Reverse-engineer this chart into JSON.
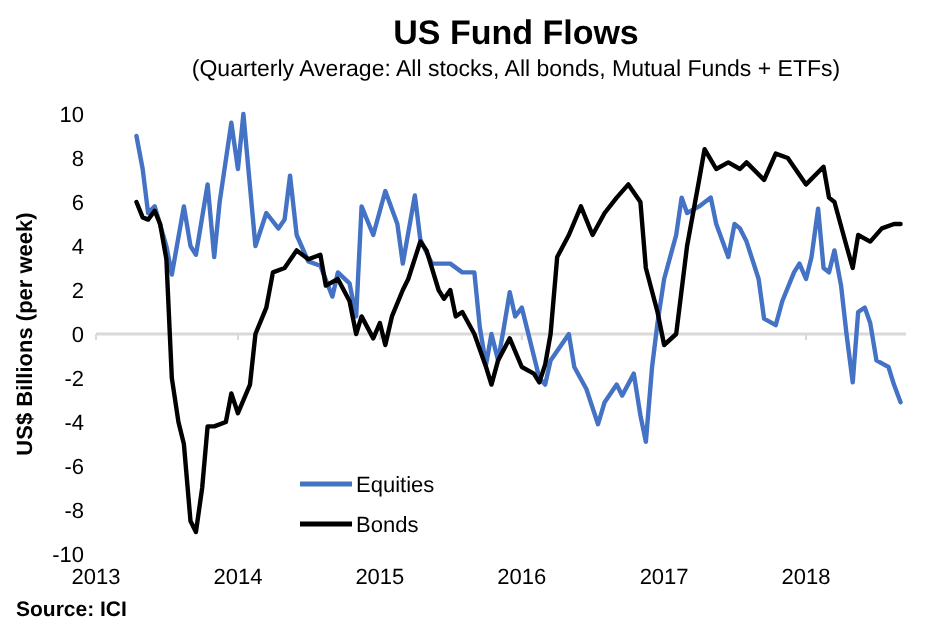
{
  "chart_data": {
    "type": "line",
    "title": "US Fund Flows",
    "subtitle": "(Quarterly Average: All stocks, All bonds, Mutual Funds + ETFs)",
    "ylabel": "US$ Billions  (per week)",
    "annotations": [
      "Source: ICI"
    ],
    "xlim": [
      "2013-01-01",
      "2018-09-15"
    ],
    "xticks": [
      {
        "value": "2013-01-01",
        "label": "2013"
      },
      {
        "value": "2014-01-01",
        "label": "2014"
      },
      {
        "value": "2015-01-01",
        "label": "2015"
      },
      {
        "value": "2016-01-01",
        "label": "2016"
      },
      {
        "value": "2017-01-01",
        "label": "2017"
      },
      {
        "value": "2018-01-01",
        "label": "2018"
      }
    ],
    "ylim": [
      -10,
      10
    ],
    "yticks": [
      -10,
      -8,
      -6,
      -4,
      -2,
      0,
      2,
      4,
      6,
      8,
      10
    ],
    "ref_lines": [
      {
        "axis": "y",
        "value": 0,
        "color": "#d9d9d9"
      }
    ],
    "legend": "bottom left",
    "line_style": "solid",
    "marker": "none",
    "series": [
      {
        "name": "Equities",
        "color": "#4472c4",
        "x": [
          "2013-04-15",
          "2013-05-01",
          "2013-05-15",
          "2013-06-01",
          "2013-07-01",
          "2013-07-15",
          "2013-08-15",
          "2013-09-01",
          "2013-09-15",
          "2013-10-15",
          "2013-11-01",
          "2013-11-15",
          "2013-12-15",
          "2014-01-01",
          "2014-01-15",
          "2014-02-15",
          "2014-03-15",
          "2014-04-15",
          "2014-05-01",
          "2014-05-15",
          "2014-06-01",
          "2014-07-01",
          "2014-08-01",
          "2014-09-01",
          "2014-09-15",
          "2014-10-15",
          "2014-11-01",
          "2014-11-15",
          "2014-12-15",
          "2015-01-15",
          "2015-02-15",
          "2015-03-01",
          "2015-04-01",
          "2015-04-15",
          "2015-05-15",
          "2015-07-01",
          "2015-08-01",
          "2015-09-01",
          "2015-09-15",
          "2015-10-01",
          "2015-10-15",
          "2015-11-01",
          "2015-11-15",
          "2015-12-01",
          "2015-12-15",
          "2016-01-01",
          "2016-02-01",
          "2016-02-15",
          "2016-03-01",
          "2016-03-15",
          "2016-05-01",
          "2016-05-15",
          "2016-06-15",
          "2016-07-15",
          "2016-08-01",
          "2016-09-01",
          "2016-09-15",
          "2016-10-15",
          "2016-11-01",
          "2016-11-15",
          "2016-12-01",
          "2016-12-15",
          "2017-01-01",
          "2017-02-01",
          "2017-02-15",
          "2017-03-01",
          "2017-04-01",
          "2017-05-01",
          "2017-05-15",
          "2017-06-15",
          "2017-07-01",
          "2017-07-15",
          "2017-08-01",
          "2017-09-01",
          "2017-09-15",
          "2017-10-15",
          "2017-11-01",
          "2017-12-01",
          "2017-12-15",
          "2018-01-01",
          "2018-01-15",
          "2018-02-01",
          "2018-02-15",
          "2018-03-01",
          "2018-03-15",
          "2018-04-01",
          "2018-04-15",
          "2018-05-01",
          "2018-05-15",
          "2018-06-01",
          "2018-06-15",
          "2018-07-01",
          "2018-08-01",
          "2018-08-15",
          "2018-09-01"
        ],
        "values": [
          9.0,
          7.5,
          5.5,
          5.8,
          4.0,
          2.7,
          5.8,
          4.0,
          3.6,
          6.8,
          3.5,
          6.0,
          9.6,
          7.5,
          10.0,
          4.0,
          5.5,
          4.8,
          5.2,
          7.2,
          4.5,
          3.3,
          3.1,
          1.7,
          2.8,
          2.3,
          0.8,
          5.8,
          4.5,
          6.5,
          5.0,
          3.2,
          6.3,
          4.3,
          3.2,
          3.2,
          2.8,
          2.8,
          0.3,
          -1.4,
          0,
          -1.2,
          0.2,
          1.9,
          0.8,
          1.2,
          -1.0,
          -2.0,
          -2.3,
          -1.2,
          0,
          -1.5,
          -2.5,
          -4.1,
          -3.1,
          -2.3,
          -2.8,
          -1.8,
          -3.7,
          -4.9,
          -1.5,
          0.5,
          2.5,
          4.5,
          6.2,
          5.5,
          5.8,
          6.2,
          5.0,
          3.5,
          5.0,
          4.8,
          4.2,
          2.5,
          0.7,
          0.4,
          1.5,
          2.8,
          3.2,
          2.5,
          3.5,
          5.7,
          3.0,
          2.8,
          3.8,
          2.2,
          0,
          -2.2,
          1.0,
          1.2,
          0.5,
          -1.2,
          -1.5,
          -2.3,
          -3.1
        ]
      },
      {
        "name": "Bonds",
        "color": "#000000",
        "x": [
          "2013-04-15",
          "2013-05-01",
          "2013-05-15",
          "2013-06-01",
          "2013-06-15",
          "2013-07-01",
          "2013-07-15",
          "2013-08-01",
          "2013-08-15",
          "2013-09-01",
          "2013-09-15",
          "2013-10-01",
          "2013-10-15",
          "2013-11-01",
          "2013-12-01",
          "2013-12-15",
          "2014-01-01",
          "2014-02-01",
          "2014-02-15",
          "2014-03-15",
          "2014-04-01",
          "2014-05-01",
          "2014-06-01",
          "2014-07-01",
          "2014-08-01",
          "2014-08-15",
          "2014-09-15",
          "2014-10-15",
          "2014-11-01",
          "2014-11-15",
          "2014-12-15",
          "2015-01-01",
          "2015-01-15",
          "2015-02-01",
          "2015-03-01",
          "2015-03-15",
          "2015-04-15",
          "2015-05-01",
          "2015-06-01",
          "2015-06-15",
          "2015-07-01",
          "2015-07-15",
          "2015-08-01",
          "2015-09-01",
          "2015-10-01",
          "2015-10-15",
          "2015-11-01",
          "2015-12-01",
          "2016-01-01",
          "2016-02-01",
          "2016-02-15",
          "2016-03-01",
          "2016-03-15",
          "2016-04-01",
          "2016-05-01",
          "2016-06-01",
          "2016-07-01",
          "2016-08-01",
          "2016-09-01",
          "2016-10-01",
          "2016-11-01",
          "2016-11-15",
          "2016-12-15",
          "2017-01-01",
          "2017-02-01",
          "2017-03-01",
          "2017-04-01",
          "2017-04-15",
          "2017-05-15",
          "2017-06-15",
          "2017-07-15",
          "2017-08-01",
          "2017-09-15",
          "2017-10-15",
          "2017-11-15",
          "2018-01-01",
          "2018-02-15",
          "2018-03-01",
          "2018-03-15",
          "2018-04-15",
          "2018-05-01",
          "2018-05-15",
          "2018-06-15",
          "2018-07-15",
          "2018-08-15",
          "2018-09-01"
        ],
        "values": [
          6.0,
          5.3,
          5.2,
          5.6,
          5.0,
          3.4,
          -2.0,
          -4.0,
          -5.0,
          -8.5,
          -9.0,
          -7.0,
          -4.2,
          -4.2,
          -4.0,
          -2.7,
          -3.6,
          -2.3,
          0,
          1.2,
          2.8,
          3.0,
          3.8,
          3.4,
          3.6,
          2.2,
          2.5,
          1.5,
          0,
          0.8,
          -0.2,
          0.5,
          -0.5,
          0.8,
          2.0,
          2.5,
          4.2,
          3.8,
          2.0,
          1.6,
          2.0,
          0.8,
          1.0,
          0,
          -1.5,
          -2.3,
          -1.2,
          -0.2,
          -1.5,
          -1.8,
          -2.2,
          -1.4,
          0,
          3.5,
          4.5,
          5.8,
          4.5,
          5.5,
          6.2,
          6.8,
          6.0,
          3.0,
          1.0,
          -0.5,
          0,
          4.0,
          7.0,
          8.4,
          7.5,
          7.8,
          7.5,
          7.8,
          7.0,
          8.2,
          8.0,
          6.8,
          7.6,
          6.2,
          6.0,
          4.0,
          3.0,
          4.5,
          4.2,
          4.8,
          5.0,
          5.0
        ]
      }
    ]
  }
}
